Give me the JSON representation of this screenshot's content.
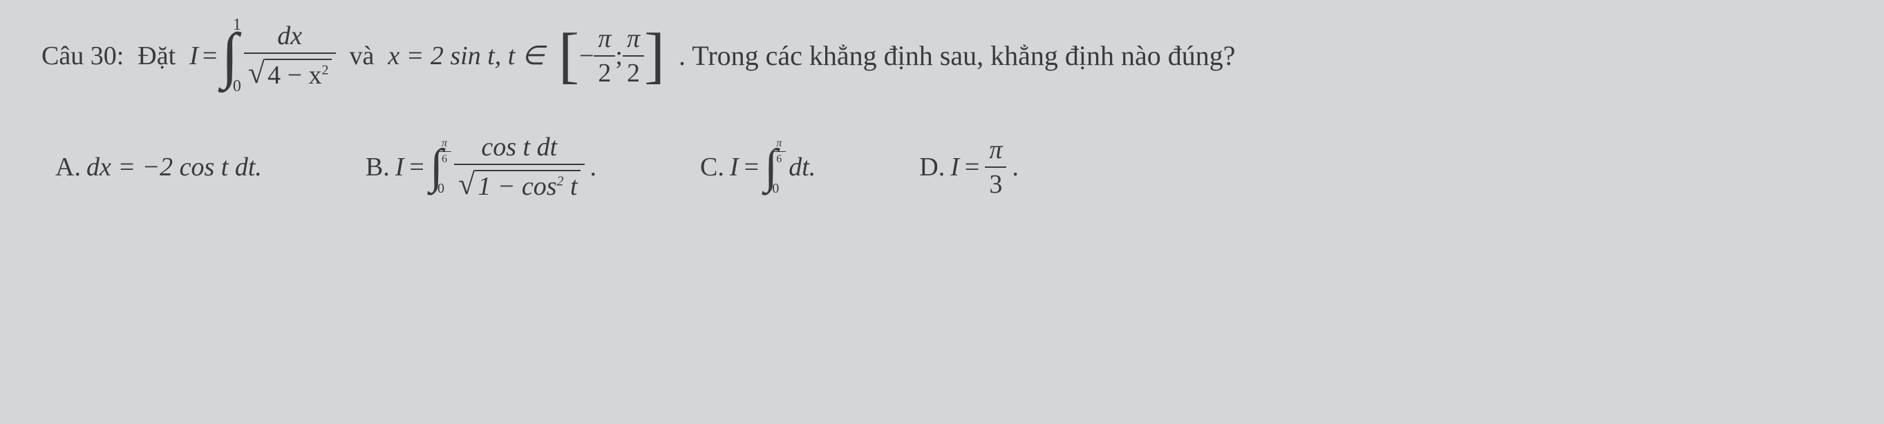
{
  "question": {
    "number": "Câu 30:",
    "prefix": "Đặt",
    "integral_var": "I",
    "equals": "=",
    "integral": {
      "lower": "0",
      "upper": "1",
      "numerator": "dx",
      "denom_sqrt": "4 − x",
      "denom_exp": "2"
    },
    "and_text": "và",
    "substitution": "x = 2 sin t, t ∈",
    "interval": {
      "left_num": "π",
      "left_den": "2",
      "right_num": "π",
      "right_den": "2",
      "neg": "−",
      "sep": ";"
    },
    "post_text": ". Trong các khẳng định sau, khẳng định nào đúng?"
  },
  "options": {
    "A": {
      "label": "A.",
      "expr": "dx = −2 cos t dt."
    },
    "B": {
      "label": "B.",
      "var": "I",
      "equals": "=",
      "integral": {
        "lower": "0",
        "upper_num": "π",
        "upper_den": "6",
        "numerator": "cos t dt",
        "denom_sqrt_pre": "1 − cos",
        "denom_sqrt_exp": "2",
        "denom_sqrt_post": " t"
      },
      "dot": "."
    },
    "C": {
      "label": "C.",
      "var": "I",
      "equals": "=",
      "integral": {
        "lower": "0",
        "upper_num": "π",
        "upper_den": "6",
        "integrand": "dt."
      }
    },
    "D": {
      "label": "D.",
      "var": "I",
      "equals": "=",
      "frac_num": "π",
      "frac_den": "3",
      "dot": "."
    }
  },
  "colors": {
    "bg": "#d4d6d8",
    "text": "#3a3a3a",
    "line": "#3a3a3a"
  },
  "fonts": {
    "body_size": 38,
    "main_text_size": 40,
    "integral_big": 90,
    "integral_small": 70,
    "limits_size": 24,
    "small_limits_size": 20
  }
}
